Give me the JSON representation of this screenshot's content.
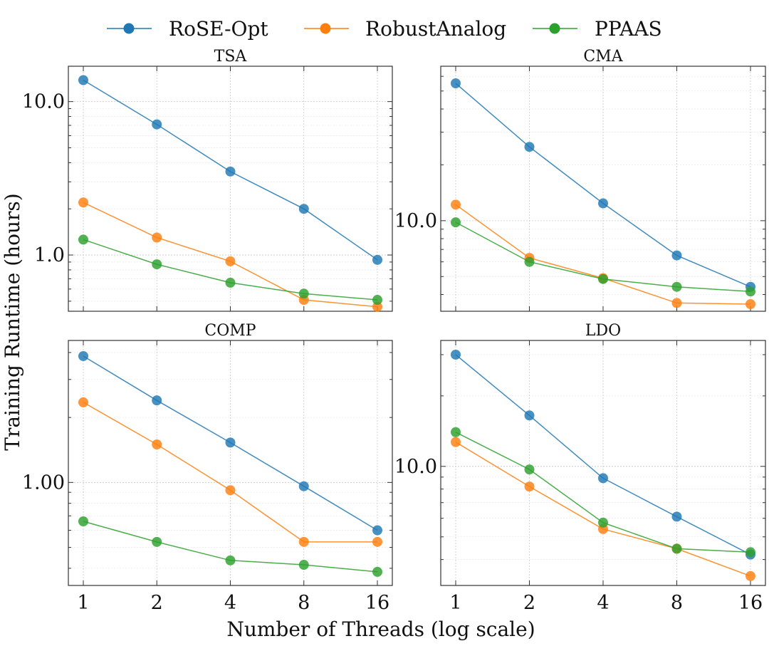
{
  "legend": {
    "entries": [
      {
        "name": "RoSE-Opt",
        "color": "#1f77b4"
      },
      {
        "name": "RobustAnalog",
        "color": "#ff7f0e"
      },
      {
        "name": "PPAAS",
        "color": "#2ca02c"
      }
    ]
  },
  "axes": {
    "xlabel": "Number of Threads (log scale)",
    "ylabel": "Training Runtime (hours)"
  },
  "chart_data": [
    {
      "type": "line",
      "title": "TSA",
      "xscale": "log2",
      "yscale": "log10",
      "x": [
        1,
        2,
        4,
        8,
        16
      ],
      "xticks": [
        "1",
        "2",
        "4",
        "8",
        "16"
      ],
      "ylim": [
        0.43,
        17
      ],
      "yticks": [
        {
          "value": 1.0,
          "label": "1.0"
        },
        {
          "value": 10.0,
          "label": "10.0"
        }
      ],
      "show_xtick_labels": false,
      "series": [
        {
          "name": "RoSE-Opt",
          "values": [
            13.8,
            7.1,
            3.5,
            2.0,
            0.93
          ]
        },
        {
          "name": "RobustAnalog",
          "values": [
            2.2,
            1.3,
            0.91,
            0.51,
            0.46
          ]
        },
        {
          "name": "PPAAS",
          "values": [
            1.26,
            0.87,
            0.66,
            0.56,
            0.51
          ]
        }
      ]
    },
    {
      "type": "line",
      "title": "CMA",
      "xscale": "log2",
      "yscale": "log10",
      "x": [
        1,
        2,
        4,
        8,
        16
      ],
      "xticks": [
        "1",
        "2",
        "4",
        "8",
        "16"
      ],
      "ylim": [
        3.25,
        68
      ],
      "yticks": [
        {
          "value": 10.0,
          "label": "10.0"
        }
      ],
      "show_xtick_labels": false,
      "series": [
        {
          "name": "RoSE-Opt",
          "values": [
            55,
            25,
            12.4,
            6.5,
            4.4
          ]
        },
        {
          "name": "RobustAnalog",
          "values": [
            12.2,
            6.3,
            4.9,
            3.6,
            3.55
          ]
        },
        {
          "name": "PPAAS",
          "values": [
            9.8,
            6.0,
            4.85,
            4.4,
            4.15
          ]
        }
      ]
    },
    {
      "type": "line",
      "title": "COMP",
      "xscale": "log2",
      "yscale": "log10",
      "x": [
        1,
        2,
        4,
        8,
        16
      ],
      "xticks": [
        "1",
        "2",
        "4",
        "8",
        "16"
      ],
      "ylim": [
        0.333,
        4.55
      ],
      "yticks": [
        {
          "value": 1.0,
          "label": "1.00"
        }
      ],
      "show_xtick_labels": true,
      "series": [
        {
          "name": "RoSE-Opt",
          "values": [
            3.85,
            2.4,
            1.53,
            0.96,
            0.6
          ]
        },
        {
          "name": "RobustAnalog",
          "values": [
            2.35,
            1.5,
            0.92,
            0.53,
            0.53
          ]
        },
        {
          "name": "PPAAS",
          "values": [
            0.66,
            0.53,
            0.435,
            0.415,
            0.385
          ]
        }
      ]
    },
    {
      "type": "line",
      "title": "LDO",
      "xscale": "log2",
      "yscale": "log10",
      "x": [
        1,
        2,
        4,
        8,
        16
      ],
      "xticks": [
        "1",
        "2",
        "4",
        "8",
        "16"
      ],
      "ylim": [
        3.1,
        34.5
      ],
      "yticks": [
        {
          "value": 10.0,
          "label": "10.0"
        }
      ],
      "show_xtick_labels": true,
      "series": [
        {
          "name": "RoSE-Opt",
          "values": [
            30,
            16.5,
            8.9,
            6.1,
            4.2
          ]
        },
        {
          "name": "RobustAnalog",
          "values": [
            12.7,
            8.2,
            5.4,
            4.45,
            3.4
          ]
        },
        {
          "name": "PPAAS",
          "values": [
            14.0,
            9.7,
            5.75,
            4.45,
            4.3
          ]
        }
      ]
    }
  ]
}
